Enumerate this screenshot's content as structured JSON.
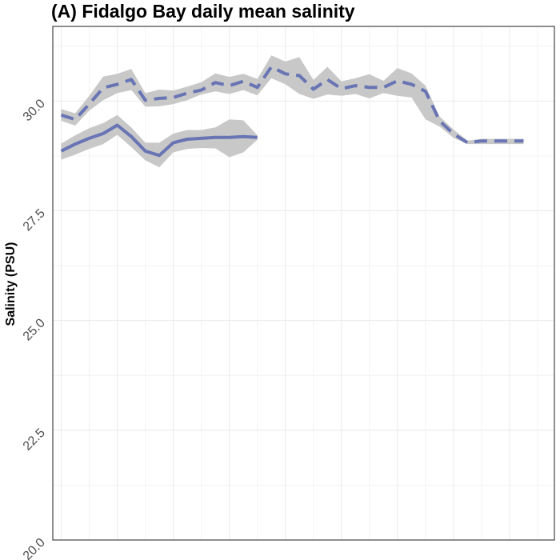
{
  "chart_data": {
    "type": "line",
    "title": "(A) Fidalgo Bay daily mean salinity",
    "xlabel": "",
    "ylabel": "Salinity (PSU)",
    "ylim": [
      20.0,
      31.7
    ],
    "xlim": [
      -0.3,
      17.6
    ],
    "yticks": [
      "20.0",
      "22.5",
      "25.0",
      "27.5",
      "30.0"
    ],
    "y_tick_values": [
      20.0,
      22.5,
      25.0,
      27.5,
      30.0
    ],
    "grid": true,
    "legend": "none",
    "colors": {
      "line": "#6874b4",
      "ribbon": "#c8c8c8",
      "grid": "#ebebeb",
      "frame": "#333333"
    },
    "series": [
      {
        "style": "dashed",
        "x": [
          0,
          0.5,
          1,
          1.5,
          2,
          2.5,
          3,
          3.5,
          4,
          4.5,
          5,
          5.5,
          6,
          6.5,
          7,
          7.5,
          8,
          8.5,
          9,
          9.5,
          10,
          10.5,
          11,
          11.5,
          12,
          12.5,
          13,
          13.5,
          14,
          14.5,
          15,
          15.5,
          16,
          16.5
        ],
        "values": [
          29.68,
          29.58,
          29.93,
          30.3,
          30.38,
          30.49,
          30.02,
          30.06,
          30.08,
          30.18,
          30.25,
          30.42,
          30.35,
          30.45,
          30.31,
          30.78,
          30.62,
          30.58,
          30.27,
          30.49,
          30.28,
          30.35,
          30.31,
          30.31,
          30.46,
          30.38,
          30.22,
          29.55,
          29.25,
          29.05,
          29.09,
          29.09,
          29.09,
          29.09
        ],
        "lower": [
          29.55,
          29.44,
          29.78,
          30.02,
          30.18,
          30.25,
          29.87,
          29.88,
          29.93,
          30.02,
          30.15,
          30.22,
          30.16,
          30.25,
          30.13,
          30.52,
          30.38,
          30.16,
          30.05,
          30.15,
          30.12,
          30.16,
          30.06,
          30.18,
          30.12,
          30.08,
          29.58,
          29.42,
          29.16,
          29.02,
          29.02,
          29.02,
          29.02,
          29.02
        ],
        "upper": [
          29.82,
          29.72,
          30.12,
          30.56,
          30.62,
          30.73,
          30.18,
          30.26,
          30.24,
          30.33,
          30.43,
          30.63,
          30.55,
          30.62,
          30.5,
          31.04,
          30.9,
          31.0,
          30.48,
          30.78,
          30.45,
          30.52,
          30.61,
          30.46,
          30.75,
          30.63,
          30.35,
          29.65,
          29.35,
          29.1,
          29.14,
          29.14,
          29.14,
          29.14
        ]
      },
      {
        "style": "solid",
        "x": [
          0,
          0.5,
          1,
          1.5,
          2,
          2.5,
          3,
          3.5,
          4,
          4.5,
          5,
          5.5,
          6,
          6.5,
          7
        ],
        "values": [
          28.86,
          29.02,
          29.15,
          29.26,
          29.45,
          29.19,
          28.86,
          28.76,
          29.05,
          29.13,
          29.15,
          29.17,
          29.17,
          29.19,
          29.17
        ],
        "lower": [
          28.66,
          28.78,
          28.91,
          29.02,
          29.23,
          28.95,
          28.65,
          28.49,
          28.83,
          28.91,
          28.93,
          28.92,
          28.72,
          28.83,
          29.12
        ],
        "upper": [
          29.03,
          29.22,
          29.38,
          29.5,
          29.68,
          29.4,
          29.05,
          29.05,
          29.26,
          29.34,
          29.34,
          29.4,
          29.58,
          29.56,
          29.22
        ]
      }
    ]
  }
}
